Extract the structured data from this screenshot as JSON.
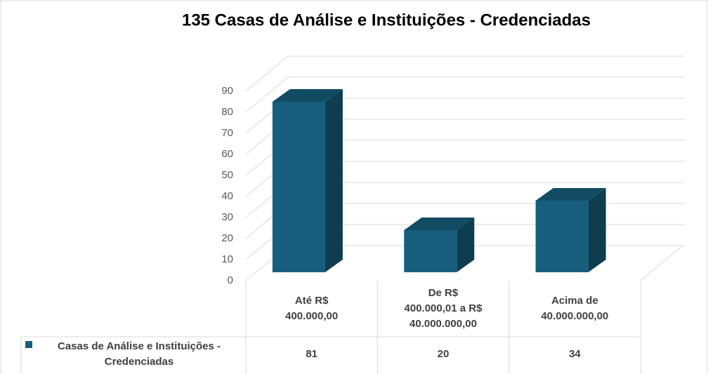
{
  "chart_data": {
    "type": "bar3d",
    "title": "135 Casas de Análise e Instituições - Credenciadas",
    "categories": [
      "Até R$ 400.000,00",
      "De R$ 400.000,01 a R$ 40.000.000,00",
      "Acima de 40.000.000,00"
    ],
    "series": [
      {
        "name": "Casas de Análise e Instituições - Credenciadas",
        "color": "#165e7c",
        "values": [
          81,
          20,
          34
        ]
      }
    ],
    "ylim": [
      0,
      90
    ],
    "yticks": [
      0,
      10,
      20,
      30,
      40,
      50,
      60,
      70,
      80,
      90
    ],
    "grid": true,
    "data_table": true
  }
}
